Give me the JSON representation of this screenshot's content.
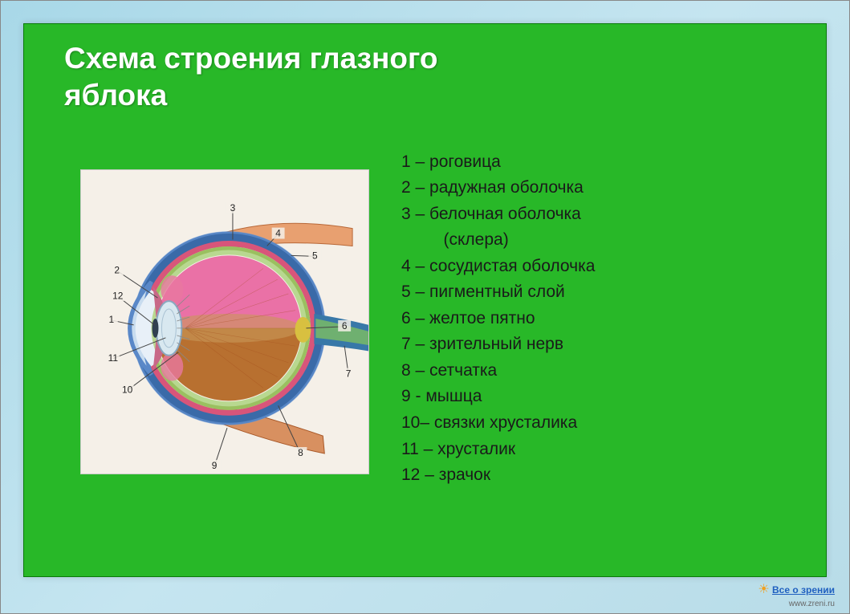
{
  "slide": {
    "background_color": "#28b828",
    "border_color": "#0a7a0a",
    "title": "Схема строения глазного\nяблока",
    "title_color": "#ffffff",
    "title_fontsize": 37
  },
  "outer_background_gradient": [
    "#a8d8e8",
    "#c5e5f0",
    "#b8dce8"
  ],
  "labels": {
    "fontsize": 21,
    "color": "#1a1a1a",
    "items": [
      "1 – роговица",
      "2 – радужная оболочка",
      "3 – белочная оболочка",
      "         (склера)",
      "4 – сосудистая оболочка",
      "5 – пигментный слой",
      "6 – желтое пятно",
      "7 – зрительный нерв",
      "8 – сетчатка",
      "9 - мышца",
      "10– связки хрусталика",
      "11 – хрусталик",
      "12 – зрачок"
    ],
    "indent_indices": [
      3
    ]
  },
  "diagram": {
    "background_color": "#f5f0e8",
    "numbers": [
      "1",
      "2",
      "3",
      "4",
      "5",
      "6",
      "7",
      "8",
      "9",
      "10",
      "11",
      "12"
    ],
    "number_fontsize": 12,
    "number_color": "#222222",
    "line_color": "#444444",
    "colors": {
      "sclera_outer": "#3a6aa8",
      "sclera_outer_light": "#6a9ad8",
      "muscle_top": "#e8a070",
      "muscle_bottom": "#d89060",
      "choroid": "#d8557a",
      "retina": "#b8d890",
      "pigment": "#9ac060",
      "vitreous_top": "#e85a9a",
      "vitreous_bottom": "#b87030",
      "vitreous_mid": "#c89858",
      "cornea_outer": "#5a88c8",
      "cornea_inner": "#c8dcef",
      "lens": "#d8e8f0",
      "lens_stroke": "#8aa8c0",
      "iris": "#c86888",
      "ciliary": "#e878a0",
      "nerve": "#3878a8",
      "nerve_highlight": "#88c858",
      "macula": "#d8c040"
    }
  },
  "logo": {
    "text": "Все о зрении",
    "sub": "www.zreni.ru",
    "color": "#2060c0"
  }
}
